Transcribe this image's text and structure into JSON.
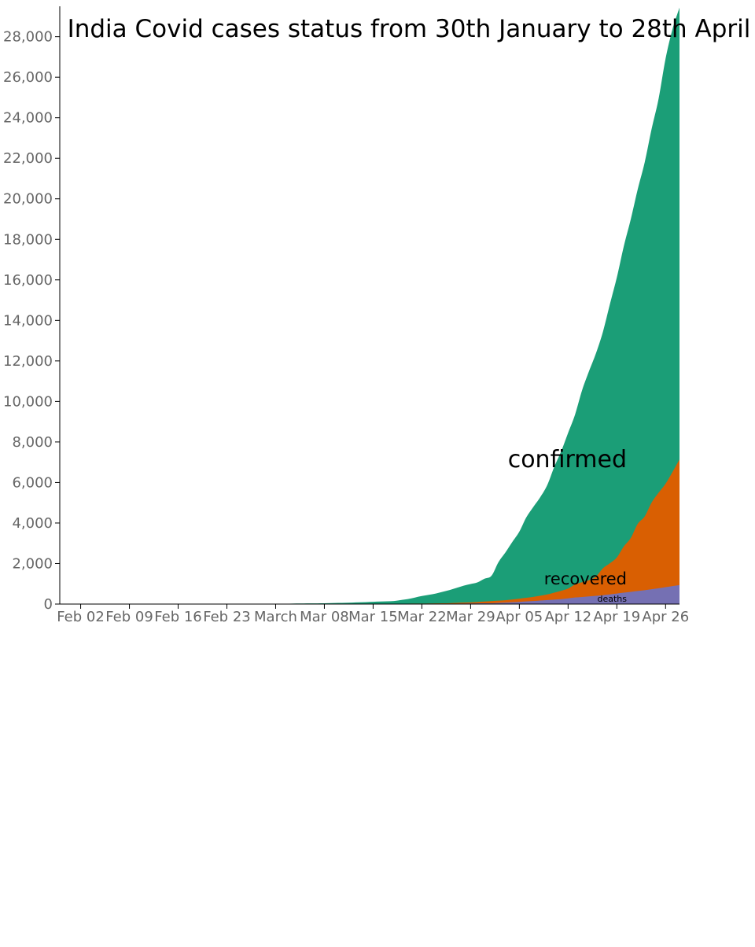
{
  "chart_data": {
    "type": "area",
    "stacked": true,
    "title": "India Covid cases status from 30th January to 28th April",
    "xlabel": "",
    "ylabel": "",
    "x_start": "2020-01-30",
    "x_end": "2020-04-28",
    "ylim": [
      0,
      29500
    ],
    "yticks": [
      0,
      2000,
      4000,
      6000,
      8000,
      10000,
      12000,
      14000,
      16000,
      18000,
      20000,
      22000,
      24000,
      26000,
      28000
    ],
    "ytick_labels": [
      "0",
      "2,000",
      "4,000",
      "6,000",
      "8,000",
      "10,000",
      "12,000",
      "14,000",
      "16,000",
      "18,000",
      "20,000",
      "22,000",
      "24,000",
      "26,000",
      "28,000"
    ],
    "xticks": [
      {
        "date": "2020-02-02",
        "label": "Feb 02"
      },
      {
        "date": "2020-02-09",
        "label": "Feb 09"
      },
      {
        "date": "2020-02-16",
        "label": "Feb 16"
      },
      {
        "date": "2020-02-23",
        "label": "Feb 23"
      },
      {
        "date": "2020-03-01",
        "label": "March"
      },
      {
        "date": "2020-03-08",
        "label": "Mar 08"
      },
      {
        "date": "2020-03-15",
        "label": "Mar 15"
      },
      {
        "date": "2020-03-22",
        "label": "Mar 22"
      },
      {
        "date": "2020-03-29",
        "label": "Mar 29"
      },
      {
        "date": "2020-04-05",
        "label": "Apr 05"
      },
      {
        "date": "2020-04-12",
        "label": "Apr 12"
      },
      {
        "date": "2020-04-19",
        "label": "Apr 19"
      },
      {
        "date": "2020-04-26",
        "label": "Apr 26"
      }
    ],
    "grid": false,
    "series": [
      {
        "name": "confirmed",
        "color": "#1b9e77",
        "points": [
          [
            "2020-01-30",
            1
          ],
          [
            "2020-02-02",
            3
          ],
          [
            "2020-02-09",
            3
          ],
          [
            "2020-02-16",
            3
          ],
          [
            "2020-02-23",
            3
          ],
          [
            "2020-03-01",
            3
          ],
          [
            "2020-03-04",
            28
          ],
          [
            "2020-03-08",
            39
          ],
          [
            "2020-03-12",
            74
          ],
          [
            "2020-03-15",
            110
          ],
          [
            "2020-03-18",
            151
          ],
          [
            "2020-03-20",
            249
          ],
          [
            "2020-03-22",
            396
          ],
          [
            "2020-03-24",
            519
          ],
          [
            "2020-03-26",
            694
          ],
          [
            "2020-03-28",
            909
          ],
          [
            "2020-03-30",
            1071
          ],
          [
            "2020-03-31",
            1251
          ],
          [
            "2020-04-01",
            1397
          ],
          [
            "2020-04-02",
            2069
          ],
          [
            "2020-04-03",
            2547
          ],
          [
            "2020-04-04",
            3072
          ],
          [
            "2020-04-05",
            3577
          ],
          [
            "2020-04-06",
            4281
          ],
          [
            "2020-04-07",
            4789
          ],
          [
            "2020-04-08",
            5274
          ],
          [
            "2020-04-09",
            5865
          ],
          [
            "2020-04-10",
            6761
          ],
          [
            "2020-04-11",
            7529
          ],
          [
            "2020-04-12",
            8447
          ],
          [
            "2020-04-13",
            9352
          ],
          [
            "2020-04-14",
            10541
          ],
          [
            "2020-04-15",
            11487
          ],
          [
            "2020-04-16",
            12371
          ],
          [
            "2020-04-17",
            13432
          ],
          [
            "2020-04-18",
            14792
          ],
          [
            "2020-04-19",
            16116
          ],
          [
            "2020-04-20",
            17656
          ],
          [
            "2020-04-21",
            18985
          ],
          [
            "2020-04-22",
            20471
          ],
          [
            "2020-04-23",
            21797
          ],
          [
            "2020-04-24",
            23452
          ],
          [
            "2020-04-25",
            24942
          ],
          [
            "2020-04-26",
            26917
          ],
          [
            "2020-04-27",
            28380
          ],
          [
            "2020-04-28",
            29435
          ]
        ]
      },
      {
        "name": "recovered",
        "color": "#d95f02",
        "points": [
          [
            "2020-01-30",
            0
          ],
          [
            "2020-02-02",
            0
          ],
          [
            "2020-02-09",
            0
          ],
          [
            "2020-02-16",
            3
          ],
          [
            "2020-02-23",
            3
          ],
          [
            "2020-03-01",
            3
          ],
          [
            "2020-03-08",
            3
          ],
          [
            "2020-03-15",
            13
          ],
          [
            "2020-03-22",
            24
          ],
          [
            "2020-03-26",
            45
          ],
          [
            "2020-03-29",
            84
          ],
          [
            "2020-04-01",
            144
          ],
          [
            "2020-04-03",
            191
          ],
          [
            "2020-04-05",
            267
          ],
          [
            "2020-04-07",
            352
          ],
          [
            "2020-04-09",
            473
          ],
          [
            "2020-04-11",
            654
          ],
          [
            "2020-04-12",
            765
          ],
          [
            "2020-04-13",
            969
          ],
          [
            "2020-04-14",
            1075
          ],
          [
            "2020-04-15",
            1181
          ],
          [
            "2020-04-16",
            1359
          ],
          [
            "2020-04-17",
            1768
          ],
          [
            "2020-04-18",
            2015
          ],
          [
            "2020-04-19",
            2302
          ],
          [
            "2020-04-20",
            2842
          ],
          [
            "2020-04-21",
            3260
          ],
          [
            "2020-04-22",
            3960
          ],
          [
            "2020-04-23",
            4325
          ],
          [
            "2020-04-24",
            5012
          ],
          [
            "2020-04-25",
            5496
          ],
          [
            "2020-04-26",
            5939
          ],
          [
            "2020-04-27",
            6523
          ],
          [
            "2020-04-28",
            7137
          ]
        ]
      },
      {
        "name": "deaths",
        "color": "#7570b3",
        "points": [
          [
            "2020-01-30",
            0
          ],
          [
            "2020-03-12",
            1
          ],
          [
            "2020-03-15",
            2
          ],
          [
            "2020-03-22",
            7
          ],
          [
            "2020-03-26",
            16
          ],
          [
            "2020-03-29",
            27
          ],
          [
            "2020-04-01",
            41
          ],
          [
            "2020-04-03",
            75
          ],
          [
            "2020-04-05",
            109
          ],
          [
            "2020-04-07",
            149
          ],
          [
            "2020-04-09",
            199
          ],
          [
            "2020-04-11",
            242
          ],
          [
            "2020-04-13",
            324
          ],
          [
            "2020-04-15",
            377
          ],
          [
            "2020-04-17",
            437
          ],
          [
            "2020-04-19",
            519
          ],
          [
            "2020-04-21",
            603
          ],
          [
            "2020-04-23",
            686
          ],
          [
            "2020-04-25",
            779
          ],
          [
            "2020-04-27",
            886
          ],
          [
            "2020-04-28",
            938
          ]
        ]
      }
    ]
  }
}
